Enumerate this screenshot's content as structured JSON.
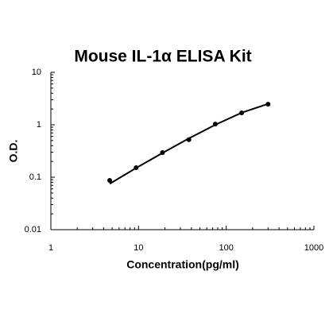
{
  "chart_data": {
    "type": "scatter",
    "title": "Mouse IL-1α ELISA Kit",
    "x_label": "Concentration(pg/ml)",
    "y_label": "O.D.",
    "x_scale": "log",
    "y_scale": "log",
    "xlim": [
      1,
      1000
    ],
    "xticks": [
      1,
      10,
      100,
      1000
    ],
    "ylim": [
      0.01,
      10
    ],
    "yticks": [
      0.01,
      0.1,
      1,
      10
    ],
    "minor_ticks": true,
    "x": [
      4.69,
      9.38,
      18.75,
      37.5,
      75,
      150,
      300
    ],
    "series": [
      {
        "kind": "markers",
        "color": "#000000",
        "values": [
          0.087,
          0.152,
          0.295,
          0.52,
          1.03,
          1.69,
          2.47
        ]
      },
      {
        "kind": "line",
        "color": "#000000",
        "values": [
          0.075,
          0.15,
          0.29,
          0.55,
          1.0,
          1.7,
          2.5
        ]
      }
    ]
  }
}
